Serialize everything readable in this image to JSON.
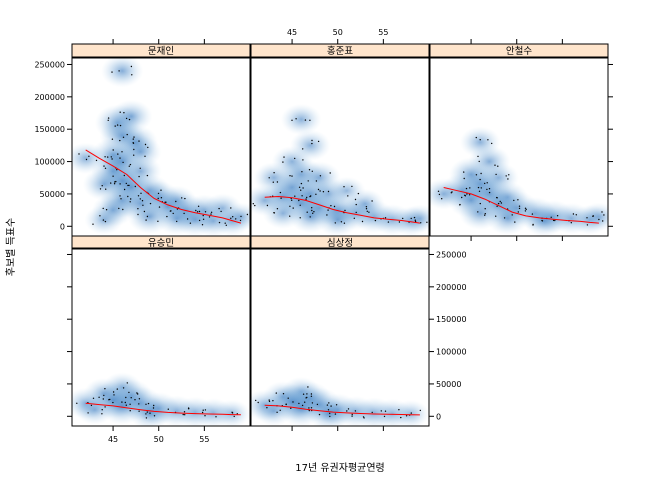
{
  "chart_data": {
    "type": "scatter",
    "subtype": "smoothScatter trellis (2D density with points and loess smooth line)",
    "xlabel": "17년 유권자평균연령",
    "ylabel": "후보별 득표수",
    "xlim": [
      40.5,
      60
    ],
    "ylim": [
      -15000,
      260000
    ],
    "x_ticks": [
      45,
      50,
      55
    ],
    "y_ticks": [
      0,
      50000,
      100000,
      150000,
      200000,
      250000
    ],
    "grid": false,
    "layout": {
      "columns": 3,
      "rows": 2
    },
    "colors": {
      "density_low": "#ffffff",
      "density_high": "#0a5ab0",
      "smooth_line": "#ff0000",
      "strip_background": "#ffe5cc",
      "points": "#000000"
    },
    "panels": [
      {
        "name": "문재인",
        "smooth": [
          [
            42,
            118000
          ],
          [
            43.5,
            105000
          ],
          [
            45,
            93000
          ],
          [
            46.5,
            80000
          ],
          [
            48,
            60000
          ],
          [
            49.5,
            43000
          ],
          [
            51,
            33000
          ],
          [
            52.5,
            26000
          ],
          [
            54,
            21000
          ],
          [
            55.5,
            17000
          ],
          [
            57,
            13000
          ],
          [
            58,
            9000
          ],
          [
            59,
            5000
          ]
        ],
        "blobs": [
          [
            46,
            240000,
            0.8
          ],
          [
            45.5,
            160000,
            1
          ],
          [
            47,
            170000,
            0.8
          ],
          [
            46,
            140000,
            1
          ],
          [
            47.5,
            130000,
            0.9
          ],
          [
            48,
            115000,
            0.8
          ],
          [
            45,
            110000,
            0.9
          ],
          [
            42,
            105000,
            0.7
          ],
          [
            46,
            100000,
            1
          ],
          [
            45,
            85000,
            0.9
          ],
          [
            48,
            85000,
            0.8
          ],
          [
            46,
            70000,
            1
          ],
          [
            44,
            65000,
            0.8
          ],
          [
            47,
            60000,
            1
          ],
          [
            49,
            55000,
            0.8
          ],
          [
            50,
            45000,
            0.8
          ],
          [
            46,
            40000,
            0.9
          ],
          [
            48,
            35000,
            0.9
          ],
          [
            52,
            40000,
            0.6
          ],
          [
            51,
            30000,
            0.9
          ],
          [
            53,
            25000,
            0.8
          ],
          [
            55,
            25000,
            0.7
          ],
          [
            57,
            28000,
            0.6
          ],
          [
            49,
            15000,
            0.9
          ],
          [
            52,
            12000,
            0.8
          ],
          [
            54,
            10000,
            0.8
          ],
          [
            56,
            8000,
            0.7
          ],
          [
            58,
            8000,
            0.6
          ],
          [
            45,
            25000,
            0.8
          ],
          [
            59,
            15000,
            0.5
          ],
          [
            44,
            10000,
            0.6
          ]
        ]
      },
      {
        "name": "홍준표",
        "smooth": [
          [
            42,
            45000
          ],
          [
            43.5,
            46000
          ],
          [
            45,
            44000
          ],
          [
            46.5,
            40000
          ],
          [
            48,
            33000
          ],
          [
            49.5,
            26000
          ],
          [
            51,
            21000
          ],
          [
            52.5,
            17000
          ],
          [
            54,
            13000
          ],
          [
            55.5,
            11000
          ],
          [
            57,
            9000
          ],
          [
            58,
            7000
          ],
          [
            59,
            5000
          ]
        ],
        "blobs": [
          [
            46,
            165000,
            0.7
          ],
          [
            47,
            125000,
            0.7
          ],
          [
            45,
            100000,
            0.7
          ],
          [
            43,
            75000,
            0.7
          ],
          [
            46,
            80000,
            0.9
          ],
          [
            48,
            75000,
            0.8
          ],
          [
            45,
            60000,
            1
          ],
          [
            47,
            50000,
            1
          ],
          [
            42,
            40000,
            0.7
          ],
          [
            44,
            45000,
            0.9
          ],
          [
            49,
            50000,
            0.7
          ],
          [
            46,
            35000,
            1
          ],
          [
            48,
            28000,
            0.9
          ],
          [
            51,
            55000,
            0.5
          ],
          [
            50,
            25000,
            0.9
          ],
          [
            52,
            20000,
            0.8
          ],
          [
            54,
            15000,
            0.8
          ],
          [
            53,
            35000,
            0.6
          ],
          [
            56,
            10000,
            0.7
          ],
          [
            58,
            8000,
            0.6
          ],
          [
            47,
            15000,
            0.8
          ],
          [
            50,
            10000,
            0.8
          ],
          [
            44,
            20000,
            0.7
          ],
          [
            59,
            12000,
            0.5
          ]
        ]
      },
      {
        "name": "안철수",
        "smooth": [
          [
            42,
            60000
          ],
          [
            43.5,
            55000
          ],
          [
            45,
            50000
          ],
          [
            46.5,
            42000
          ],
          [
            48,
            32000
          ],
          [
            49.5,
            22000
          ],
          [
            51,
            16000
          ],
          [
            52.5,
            13000
          ],
          [
            54,
            11000
          ],
          [
            55.5,
            9000
          ],
          [
            57,
            7500
          ],
          [
            58,
            6000
          ],
          [
            59,
            5000
          ]
        ],
        "blobs": [
          [
            46,
            130000,
            0.7
          ],
          [
            47,
            100000,
            0.8
          ],
          [
            45,
            80000,
            0.9
          ],
          [
            48,
            75000,
            0.7
          ],
          [
            46,
            65000,
            1
          ],
          [
            44,
            55000,
            0.9
          ],
          [
            42,
            50000,
            0.7
          ],
          [
            47,
            50000,
            1
          ],
          [
            49,
            45000,
            0.7
          ],
          [
            45,
            40000,
            1
          ],
          [
            48,
            32000,
            0.9
          ],
          [
            50,
            28000,
            0.9
          ],
          [
            52,
            20000,
            0.8
          ],
          [
            54,
            15000,
            0.8
          ],
          [
            56,
            12000,
            0.7
          ],
          [
            58,
            10000,
            0.6
          ],
          [
            46,
            20000,
            0.8
          ],
          [
            49,
            12000,
            0.8
          ],
          [
            59,
            15000,
            0.5
          ],
          [
            53,
            8000,
            0.7
          ]
        ]
      },
      {
        "name": "유승민",
        "smooth": [
          [
            42,
            20000
          ],
          [
            43.5,
            18000
          ],
          [
            45,
            16000
          ],
          [
            46.5,
            13000
          ],
          [
            48,
            10000
          ],
          [
            49.5,
            7500
          ],
          [
            51,
            6000
          ],
          [
            52.5,
            5000
          ],
          [
            54,
            4200
          ],
          [
            55.5,
            3500
          ],
          [
            57,
            3000
          ],
          [
            58,
            2600
          ],
          [
            59,
            2300
          ]
        ],
        "blobs": [
          [
            46,
            45000,
            0.6
          ],
          [
            44,
            35000,
            0.7
          ],
          [
            47,
            32000,
            0.8
          ],
          [
            45,
            25000,
            1
          ],
          [
            42,
            20000,
            0.7
          ],
          [
            48,
            20000,
            0.9
          ],
          [
            46,
            15000,
            1
          ],
          [
            50,
            12000,
            0.8
          ],
          [
            52,
            8000,
            0.7
          ],
          [
            54,
            6000,
            0.7
          ],
          [
            56,
            5000,
            0.6
          ],
          [
            58,
            4000,
            0.5
          ],
          [
            49,
            5000,
            0.8
          ],
          [
            43,
            10000,
            0.6
          ]
        ]
      },
      {
        "name": "심상정",
        "smooth": [
          [
            42,
            17000
          ],
          [
            43.5,
            16000
          ],
          [
            45,
            14000
          ],
          [
            46.5,
            11000
          ],
          [
            48,
            8500
          ],
          [
            49.5,
            6500
          ],
          [
            51,
            5200
          ],
          [
            52.5,
            4300
          ],
          [
            54,
            3600
          ],
          [
            55.5,
            3100
          ],
          [
            57,
            2700
          ],
          [
            58,
            2400
          ],
          [
            59,
            2200
          ]
        ],
        "blobs": [
          [
            46,
            38000,
            0.6
          ],
          [
            44,
            30000,
            0.7
          ],
          [
            47,
            28000,
            0.8
          ],
          [
            45,
            22000,
            1
          ],
          [
            42,
            17000,
            0.7
          ],
          [
            48,
            18000,
            0.9
          ],
          [
            46,
            12000,
            1
          ],
          [
            50,
            10000,
            0.8
          ],
          [
            52,
            7000,
            0.7
          ],
          [
            54,
            5000,
            0.7
          ],
          [
            56,
            4000,
            0.6
          ],
          [
            58,
            3500,
            0.5
          ],
          [
            49,
            4000,
            0.8
          ],
          [
            43,
            8000,
            0.6
          ]
        ]
      }
    ]
  }
}
